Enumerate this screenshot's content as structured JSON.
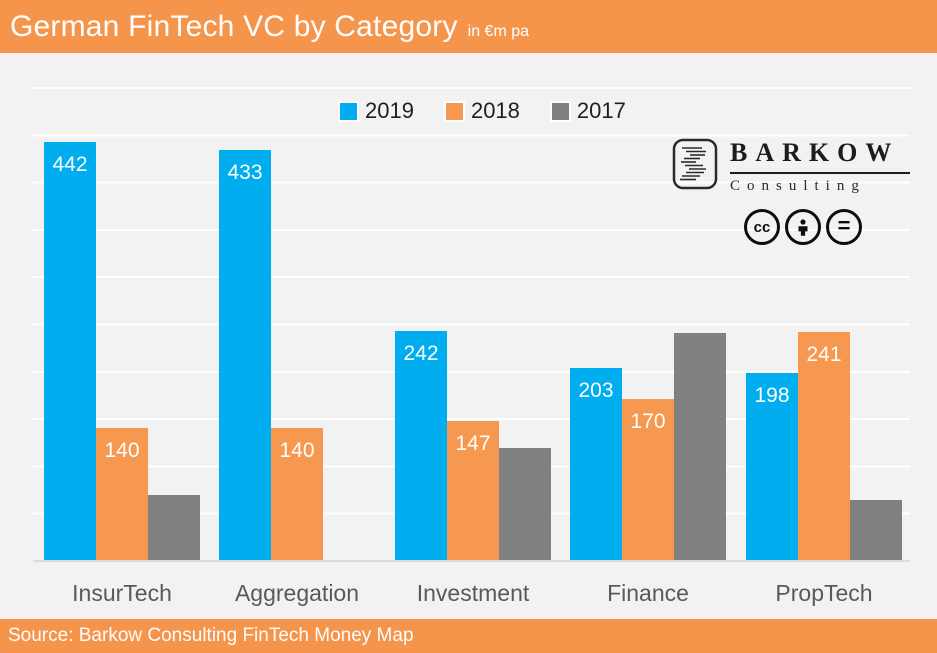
{
  "header": {
    "title": "German FinTech VC by Category",
    "subtitle": "in €m pa"
  },
  "footer": {
    "source": "Source: Barkow Consulting FinTech Money Map"
  },
  "branding": {
    "name": "BARKOW",
    "subname": "Consulting",
    "license_icons": [
      "cc-icon",
      "attribution-person-icon",
      "no-derivatives-equals-icon"
    ]
  },
  "colors": {
    "header_footer_orange": "#F5954C",
    "bar_2019_blue": "#00AEEF",
    "bar_2018_orange": "#F6984F",
    "bar_2017_gray": "#808080",
    "plot_background": "#F2F2F3",
    "gridline": "#FFFFFF",
    "axis_line": "#DBDBDC",
    "category_label": "#595959",
    "legend_text": "#1F1F1F",
    "value_label": "#FFFFFF"
  },
  "chart_data": {
    "type": "bar",
    "title": "German FinTech VC by Category",
    "units": "in €m pa",
    "categories": [
      "InsurTech",
      "Aggregation",
      "Investment",
      "Finance",
      "PropTech"
    ],
    "series": [
      {
        "name": "2019",
        "color": "#00AEEF",
        "values": [
          442,
          433,
          242,
          203,
          198
        ],
        "data_labels_shown": true
      },
      {
        "name": "2018",
        "color": "#F6984F",
        "values": [
          140,
          140,
          147,
          170,
          241
        ],
        "data_labels_shown": true
      },
      {
        "name": "2017",
        "color": "#808080",
        "values": [
          69,
          0,
          118,
          240,
          63
        ],
        "data_labels_shown": false
      }
    ],
    "ylim": [
      0,
      500
    ],
    "gridline_interval": 50,
    "grid": true,
    "y_axis_labels_shown": false,
    "legend_position": "top-center",
    "value_label_position": "inside-top"
  }
}
